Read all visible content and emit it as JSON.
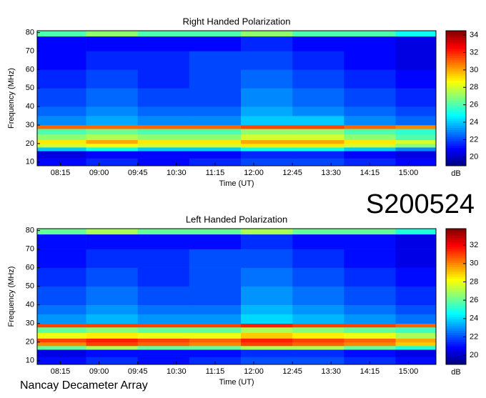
{
  "label": "S200524",
  "footer": "Nancay Decameter Array",
  "chart_data": [
    {
      "type": "heatmap",
      "title": "Right Handed Polarization",
      "x_label": "Time (UT)",
      "y_label": "Frequency (MHz)",
      "colorbar_label": "dB",
      "colormap": "jet",
      "xlim": [
        468,
        932
      ],
      "ylim": [
        8,
        81
      ],
      "xticks": [
        {
          "value": 495,
          "label": "08:15"
        },
        {
          "value": 540,
          "label": "09:00"
        },
        {
          "value": 585,
          "label": "09:45"
        },
        {
          "value": 630,
          "label": "10:30"
        },
        {
          "value": 675,
          "label": "11:15"
        },
        {
          "value": 720,
          "label": "12:00"
        },
        {
          "value": 765,
          "label": "12:45"
        },
        {
          "value": 810,
          "label": "13:30"
        },
        {
          "value": 855,
          "label": "14:15"
        },
        {
          "value": 900,
          "label": "15:00"
        }
      ],
      "yticks": [
        10,
        20,
        30,
        40,
        50,
        60,
        70,
        80
      ],
      "clim": [
        19,
        34.5
      ],
      "cticks": [
        20,
        22,
        24,
        26,
        28,
        30,
        32,
        34
      ],
      "x_bins": [
        468,
        525,
        585,
        645,
        705,
        765,
        825,
        885,
        932
      ],
      "y_bins": [
        8,
        12,
        16,
        18,
        20,
        22,
        25,
        28,
        30,
        35,
        40,
        50,
        60,
        70,
        78,
        81
      ],
      "values": [
        [
          21,
          21.5,
          21,
          21.5,
          22,
          22,
          21.5,
          21
        ],
        [
          20.5,
          21,
          21,
          21,
          21.5,
          21.5,
          21,
          20.5
        ],
        [
          24,
          25,
          24,
          24,
          25,
          25,
          24,
          23
        ],
        [
          28,
          28.5,
          28,
          28,
          29,
          29,
          28,
          27
        ],
        [
          29,
          30,
          29,
          29,
          30,
          30,
          29,
          28
        ],
        [
          27,
          27.5,
          27,
          27,
          28,
          28,
          27,
          26
        ],
        [
          26,
          26.5,
          26,
          26,
          27,
          27,
          26,
          25.5
        ],
        [
          31,
          31,
          31,
          31,
          31.5,
          31.5,
          31,
          30.5
        ],
        [
          23,
          23.5,
          23,
          23,
          24,
          24,
          23,
          22.5
        ],
        [
          22.5,
          23,
          22.5,
          22.5,
          23.5,
          23,
          22.5,
          22
        ],
        [
          22,
          22.5,
          22,
          22,
          23,
          22.5,
          22,
          21.5
        ],
        [
          21.5,
          22,
          21.5,
          22,
          22.5,
          22,
          21.5,
          21
        ],
        [
          21,
          21.5,
          21.5,
          22,
          22,
          21.5,
          21,
          20.5
        ],
        [
          21,
          21,
          21,
          21,
          21.5,
          21,
          21,
          20.5
        ],
        [
          26,
          27,
          26,
          26,
          27,
          26,
          26,
          25
        ]
      ]
    },
    {
      "type": "heatmap",
      "title": "Left Handed Polarization",
      "x_label": "Time (UT)",
      "y_label": "Frequency (MHz)",
      "colorbar_label": "dB",
      "colormap": "jet",
      "xlim": [
        468,
        932
      ],
      "ylim": [
        8,
        81
      ],
      "xticks": [
        {
          "value": 495,
          "label": "08:15"
        },
        {
          "value": 540,
          "label": "09:00"
        },
        {
          "value": 585,
          "label": "09:45"
        },
        {
          "value": 630,
          "label": "10:30"
        },
        {
          "value": 675,
          "label": "11:15"
        },
        {
          "value": 720,
          "label": "12:00"
        },
        {
          "value": 765,
          "label": "12:45"
        },
        {
          "value": 810,
          "label": "13:30"
        },
        {
          "value": 855,
          "label": "14:15"
        },
        {
          "value": 900,
          "label": "15:00"
        }
      ],
      "yticks": [
        10,
        20,
        30,
        40,
        50,
        60,
        70,
        80
      ],
      "clim": [
        19,
        33.8
      ],
      "cticks": [
        20,
        22,
        24,
        26,
        28,
        30,
        32
      ],
      "x_bins": [
        468,
        525,
        585,
        645,
        705,
        765,
        825,
        885,
        932
      ],
      "y_bins": [
        8,
        12,
        16,
        18,
        20,
        22,
        25,
        28,
        30,
        35,
        40,
        50,
        60,
        70,
        78,
        81
      ],
      "values": [
        [
          21,
          21.5,
          21,
          21.5,
          22,
          22,
          21.5,
          21
        ],
        [
          20.5,
          21,
          21,
          21,
          21.5,
          21.5,
          21,
          20.5
        ],
        [
          26,
          27,
          26,
          26,
          27,
          27,
          26,
          25
        ],
        [
          30,
          31,
          30.5,
          30,
          31,
          30.5,
          30,
          29
        ],
        [
          31,
          31.5,
          31,
          30.5,
          31.5,
          31,
          30.5,
          29.5
        ],
        [
          28,
          28.5,
          28,
          28,
          29,
          28.5,
          28,
          27
        ],
        [
          26,
          26.5,
          26,
          26,
          27,
          26.5,
          26,
          25.5
        ],
        [
          31,
          31,
          31,
          31,
          31.5,
          31,
          31,
          30.5
        ],
        [
          23,
          23.5,
          23,
          23,
          24,
          23.5,
          23,
          22.5
        ],
        [
          22.5,
          23,
          22.5,
          22.5,
          23.5,
          23,
          22.5,
          22
        ],
        [
          22,
          22.5,
          22,
          22,
          23,
          22.5,
          22,
          21.5
        ],
        [
          21.5,
          22,
          21.5,
          22,
          22.5,
          22,
          21.5,
          21
        ],
        [
          21,
          21.5,
          21.5,
          22,
          22,
          21.5,
          21,
          20.5
        ],
        [
          21,
          21,
          21,
          21,
          21.5,
          21,
          21,
          20.5
        ],
        [
          26,
          27,
          26,
          26,
          27,
          26,
          26,
          25
        ]
      ]
    }
  ]
}
